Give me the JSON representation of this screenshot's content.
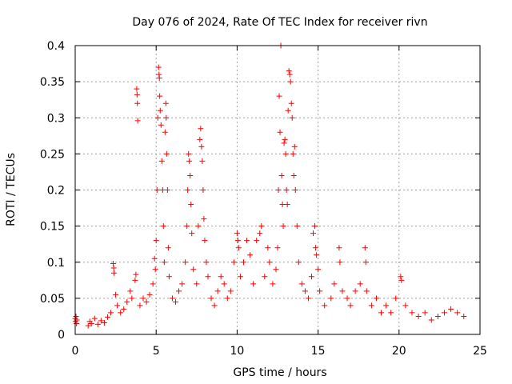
{
  "chart_data": {
    "type": "scatter",
    "title": "Day 076 of 2024, Rate Of TEC Index for receiver rivn",
    "xlabel": "GPS time / hours",
    "ylabel": "ROTI / TECUs",
    "xlim": [
      0,
      25
    ],
    "ylim": [
      0,
      0.4
    ],
    "x_ticks": [
      0,
      5,
      10,
      15,
      20,
      25
    ],
    "y_ticks": [
      0,
      0.05,
      0.1,
      0.15,
      0.2,
      0.25,
      0.3,
      0.35,
      0.4
    ],
    "x_tick_labels": [
      "0",
      "5",
      "10",
      "15",
      "20",
      "25"
    ],
    "y_tick_labels": [
      "0",
      "0.05",
      "0.1",
      "0.15",
      "0.2",
      "0.25",
      "0.3",
      "0.35",
      "0.4"
    ],
    "grid": true,
    "marker": "+",
    "color": "#ff0000",
    "series": [
      {
        "points": [
          [
            0.0,
            0.022
          ],
          [
            0.02,
            0.018
          ],
          [
            0.05,
            0.025
          ],
          [
            0.08,
            0.015
          ],
          [
            0.1,
            0.02
          ],
          [
            0.8,
            0.012
          ],
          [
            0.9,
            0.018
          ],
          [
            1.0,
            0.015
          ],
          [
            1.2,
            0.022
          ],
          [
            1.4,
            0.014
          ],
          [
            1.6,
            0.019
          ],
          [
            1.8,
            0.016
          ],
          [
            2.0,
            0.024
          ],
          [
            2.2,
            0.03
          ],
          [
            2.35,
            0.098
          ],
          [
            2.38,
            0.092
          ],
          [
            2.4,
            0.085
          ],
          [
            2.5,
            0.055
          ],
          [
            2.6,
            0.04
          ],
          [
            2.8,
            0.03
          ],
          [
            3.0,
            0.035
          ],
          [
            3.2,
            0.045
          ],
          [
            3.4,
            0.06
          ],
          [
            3.5,
            0.05
          ],
          [
            3.7,
            0.075
          ],
          [
            3.75,
            0.083
          ],
          [
            3.8,
            0.34
          ],
          [
            3.82,
            0.332
          ],
          [
            3.84,
            0.32
          ],
          [
            3.86,
            0.296
          ],
          [
            4.0,
            0.04
          ],
          [
            4.2,
            0.05
          ],
          [
            4.4,
            0.045
          ],
          [
            4.6,
            0.055
          ],
          [
            4.8,
            0.07
          ],
          [
            4.9,
            0.105
          ],
          [
            4.95,
            0.09
          ],
          [
            5.0,
            0.13
          ],
          [
            5.05,
            0.2
          ],
          [
            5.1,
            0.3
          ],
          [
            5.15,
            0.37
          ],
          [
            5.18,
            0.36
          ],
          [
            5.2,
            0.355
          ],
          [
            5.22,
            0.33
          ],
          [
            5.25,
            0.31
          ],
          [
            5.3,
            0.29
          ],
          [
            5.35,
            0.24
          ],
          [
            5.4,
            0.2
          ],
          [
            5.45,
            0.15
          ],
          [
            5.5,
            0.1
          ],
          [
            5.55,
            0.28
          ],
          [
            5.6,
            0.32
          ],
          [
            5.62,
            0.3
          ],
          [
            5.65,
            0.25
          ],
          [
            5.7,
            0.2
          ],
          [
            5.75,
            0.12
          ],
          [
            5.8,
            0.08
          ],
          [
            6.0,
            0.05
          ],
          [
            6.2,
            0.045
          ],
          [
            6.4,
            0.06
          ],
          [
            6.6,
            0.07
          ],
          [
            6.8,
            0.1
          ],
          [
            6.9,
            0.15
          ],
          [
            6.95,
            0.2
          ],
          [
            7.0,
            0.25
          ],
          [
            7.05,
            0.24
          ],
          [
            7.1,
            0.22
          ],
          [
            7.15,
            0.18
          ],
          [
            7.2,
            0.14
          ],
          [
            7.3,
            0.09
          ],
          [
            7.5,
            0.07
          ],
          [
            7.6,
            0.15
          ],
          [
            7.7,
            0.27
          ],
          [
            7.75,
            0.285
          ],
          [
            7.8,
            0.26
          ],
          [
            7.85,
            0.24
          ],
          [
            7.9,
            0.2
          ],
          [
            7.95,
            0.16
          ],
          [
            8.0,
            0.13
          ],
          [
            8.1,
            0.1
          ],
          [
            8.2,
            0.08
          ],
          [
            8.4,
            0.05
          ],
          [
            8.6,
            0.04
          ],
          [
            8.8,
            0.06
          ],
          [
            9.0,
            0.08
          ],
          [
            9.2,
            0.07
          ],
          [
            9.4,
            0.05
          ],
          [
            9.6,
            0.06
          ],
          [
            9.8,
            0.1
          ],
          [
            10.0,
            0.14
          ],
          [
            10.05,
            0.13
          ],
          [
            10.1,
            0.12
          ],
          [
            10.2,
            0.08
          ],
          [
            10.4,
            0.1
          ],
          [
            10.6,
            0.13
          ],
          [
            10.8,
            0.11
          ],
          [
            11.0,
            0.07
          ],
          [
            11.2,
            0.13
          ],
          [
            11.4,
            0.14
          ],
          [
            11.5,
            0.15
          ],
          [
            11.7,
            0.08
          ],
          [
            11.9,
            0.12
          ],
          [
            12.0,
            0.1
          ],
          [
            12.2,
            0.07
          ],
          [
            12.4,
            0.09
          ],
          [
            12.5,
            0.12
          ],
          [
            12.55,
            0.2
          ],
          [
            12.6,
            0.33
          ],
          [
            12.65,
            0.28
          ],
          [
            12.7,
            0.4
          ],
          [
            12.75,
            0.22
          ],
          [
            12.8,
            0.18
          ],
          [
            12.85,
            0.15
          ],
          [
            12.9,
            0.265
          ],
          [
            12.95,
            0.27
          ],
          [
            13.0,
            0.25
          ],
          [
            13.05,
            0.2
          ],
          [
            13.1,
            0.18
          ],
          [
            13.15,
            0.31
          ],
          [
            13.2,
            0.365
          ],
          [
            13.25,
            0.36
          ],
          [
            13.3,
            0.35
          ],
          [
            13.35,
            0.32
          ],
          [
            13.4,
            0.3
          ],
          [
            13.45,
            0.25
          ],
          [
            13.5,
            0.22
          ],
          [
            13.55,
            0.26
          ],
          [
            13.6,
            0.2
          ],
          [
            13.7,
            0.15
          ],
          [
            13.8,
            0.1
          ],
          [
            14.0,
            0.07
          ],
          [
            14.2,
            0.06
          ],
          [
            14.4,
            0.05
          ],
          [
            14.6,
            0.08
          ],
          [
            14.7,
            0.14
          ],
          [
            14.8,
            0.15
          ],
          [
            14.85,
            0.12
          ],
          [
            14.9,
            0.11
          ],
          [
            15.0,
            0.09
          ],
          [
            15.1,
            0.06
          ],
          [
            15.4,
            0.04
          ],
          [
            15.8,
            0.05
          ],
          [
            16.0,
            0.07
          ],
          [
            16.3,
            0.12
          ],
          [
            16.35,
            0.1
          ],
          [
            16.5,
            0.06
          ],
          [
            16.8,
            0.05
          ],
          [
            17.0,
            0.04
          ],
          [
            17.3,
            0.06
          ],
          [
            17.6,
            0.07
          ],
          [
            17.9,
            0.12
          ],
          [
            17.95,
            0.1
          ],
          [
            18.0,
            0.06
          ],
          [
            18.3,
            0.04
          ],
          [
            18.6,
            0.05
          ],
          [
            18.9,
            0.03
          ],
          [
            19.2,
            0.04
          ],
          [
            19.5,
            0.03
          ],
          [
            19.8,
            0.05
          ],
          [
            20.1,
            0.08
          ],
          [
            20.15,
            0.075
          ],
          [
            20.4,
            0.04
          ],
          [
            20.8,
            0.03
          ],
          [
            21.2,
            0.025
          ],
          [
            21.6,
            0.03
          ],
          [
            22.0,
            0.02
          ],
          [
            22.4,
            0.025
          ],
          [
            22.8,
            0.03
          ],
          [
            23.2,
            0.035
          ],
          [
            23.6,
            0.03
          ],
          [
            24.0,
            0.025
          ]
        ]
      }
    ]
  }
}
